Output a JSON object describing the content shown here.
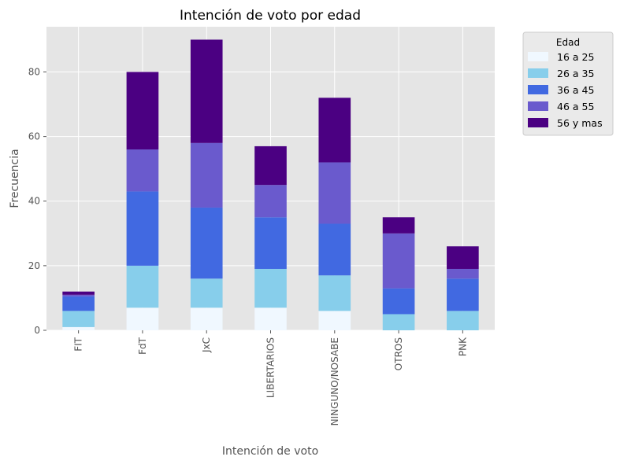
{
  "chart_data": {
    "type": "bar",
    "stacked": true,
    "title": "Intención de voto por edad",
    "xlabel": "Intención de voto",
    "ylabel": "Frecuencia",
    "categories": [
      "FIT",
      "FdT",
      "JxC",
      "LIBERTARIOS",
      "NINGUNO/NOSABE",
      "OTROS",
      "PNK"
    ],
    "ylim": [
      0,
      94
    ],
    "yticks": [
      0,
      20,
      40,
      60,
      80
    ],
    "grid": true,
    "legend": {
      "title": "Edad",
      "placement": "outside-top-right"
    },
    "series": [
      {
        "name": "16 a 25",
        "color": "#f0f8ff",
        "values": [
          1,
          7,
          7,
          7,
          6,
          0,
          0
        ]
      },
      {
        "name": "26 a 35",
        "color": "#87ceeb",
        "values": [
          5,
          13,
          9,
          12,
          11,
          5,
          6
        ]
      },
      {
        "name": "36 a 45",
        "color": "#4169e1",
        "values": [
          4.5,
          23,
          22,
          16,
          16,
          8,
          10
        ]
      },
      {
        "name": "46 a 55",
        "color": "#6a5acd",
        "values": [
          0.5,
          13,
          20,
          10,
          19,
          17,
          3
        ]
      },
      {
        "name": "56 y mas",
        "color": "#4b0082",
        "values": [
          1,
          24,
          32,
          12,
          20,
          5,
          7
        ]
      }
    ]
  }
}
